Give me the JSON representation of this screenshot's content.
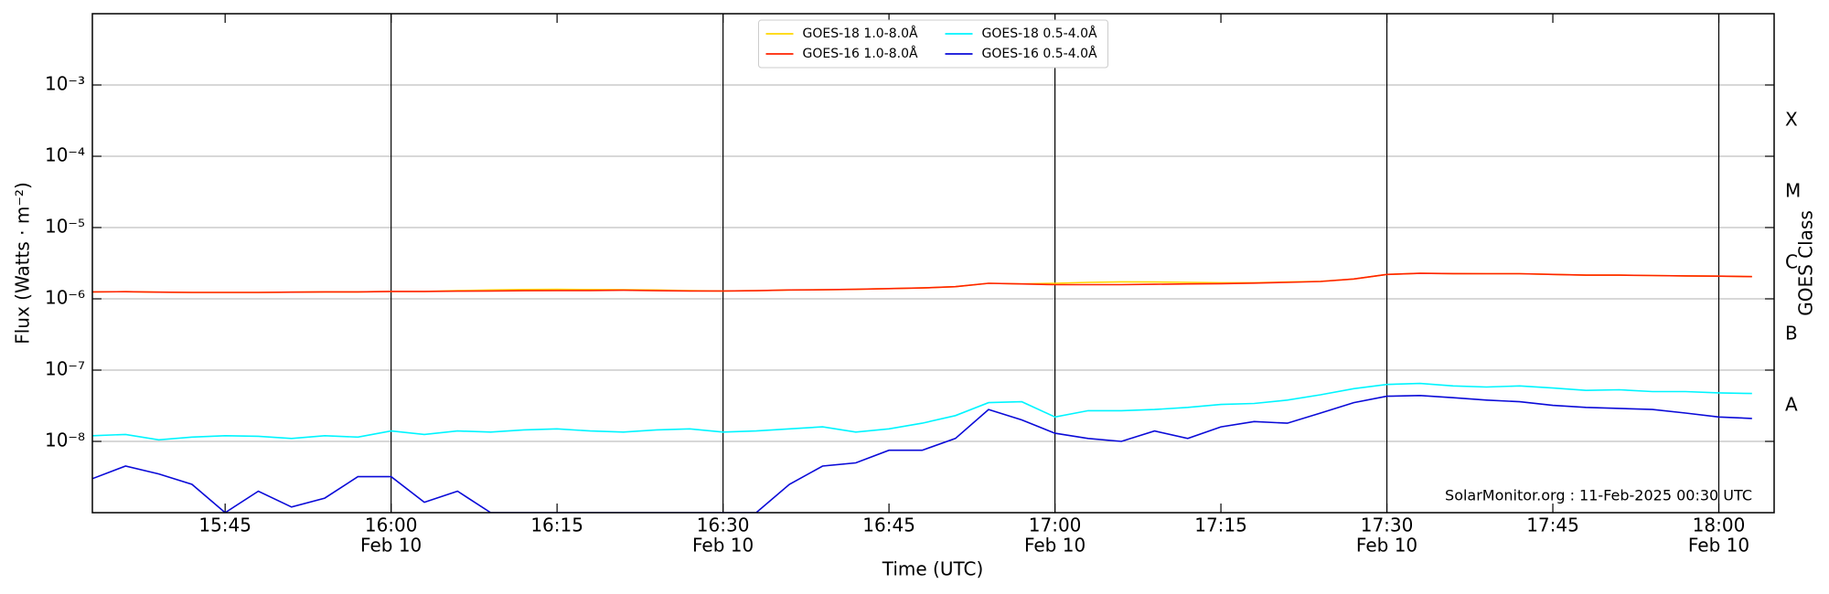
{
  "chart_data": {
    "type": "line",
    "xlabel": "Time (UTC)",
    "ylabel": "Flux (Watts · m⁻²)",
    "y2label": "GOES Class",
    "annotation": "SolarMonitor.org : 11-Feb-2025 00:30 UTC",
    "log_scale": true,
    "grid": true,
    "legend": "upper center",
    "x": [
      "15:33",
      "15:36",
      "15:39",
      "15:42",
      "15:45",
      "15:48",
      "15:51",
      "15:54",
      "15:57",
      "16:00",
      "16:03",
      "16:06",
      "16:09",
      "16:12",
      "16:15",
      "16:18",
      "16:21",
      "16:24",
      "16:27",
      "16:30",
      "16:33",
      "16:36",
      "16:39",
      "16:42",
      "16:45",
      "16:48",
      "16:51",
      "16:54",
      "16:57",
      "17:00",
      "17:03",
      "17:06",
      "17:09",
      "17:12",
      "17:15",
      "17:18",
      "17:21",
      "17:24",
      "17:27",
      "17:30",
      "17:33",
      "17:36",
      "17:39",
      "17:42",
      "17:45",
      "17:48",
      "17:51",
      "17:54",
      "17:57",
      "18:00",
      "18:03"
    ],
    "xlim": [
      "15:33",
      "18:05"
    ],
    "xticks": [
      "15:45",
      {
        "value": "16:00",
        "label": "16:00",
        "date": "Feb 10"
      },
      "16:15",
      {
        "value": "16:30",
        "label": "16:30",
        "date": "Feb 10"
      },
      "16:45",
      {
        "value": "17:00",
        "label": "17:00",
        "date": "Feb 10"
      },
      "17:15",
      {
        "value": "17:30",
        "label": "17:30",
        "date": "Feb 10"
      },
      "17:45",
      {
        "value": "18:00",
        "label": "18:00",
        "date": "Feb 10"
      }
    ],
    "ylim": [
      1e-09,
      0.01
    ],
    "yticks": [
      {
        "value": 1e-08,
        "label": "10⁻⁸"
      },
      {
        "value": 1e-07,
        "label": "10⁻⁷"
      },
      {
        "value": 1e-06,
        "label": "10⁻⁶"
      },
      {
        "value": 1e-05,
        "label": "10⁻⁵"
      },
      {
        "value": 0.0001,
        "label": "10⁻⁴"
      },
      {
        "value": 0.001,
        "label": "10⁻³"
      }
    ],
    "y2lim": [
      1e-09,
      0.01
    ],
    "y2ticks": [
      {
        "value": 3.16e-08,
        "label": "A"
      },
      {
        "value": 3.16e-07,
        "label": "B"
      },
      {
        "value": 3.16e-06,
        "label": "C"
      },
      {
        "value": 3.16e-05,
        "label": "M"
      },
      {
        "value": 0.000316,
        "label": "X"
      }
    ],
    "series": [
      {
        "name": "GOES-18 1.0-8.0Å",
        "color": "#ffd700",
        "values": [
          1.25e-06,
          1.26e-06,
          1.24e-06,
          1.23e-06,
          1.23e-06,
          1.23e-06,
          1.24e-06,
          1.25e-06,
          1.25e-06,
          1.27e-06,
          1.27e-06,
          1.3e-06,
          1.33e-06,
          1.35e-06,
          1.36e-06,
          1.35e-06,
          1.34e-06,
          1.33e-06,
          1.3e-06,
          1.29e-06,
          1.3e-06,
          1.33e-06,
          1.34e-06,
          1.36e-06,
          1.39e-06,
          1.42e-06,
          1.48e-06,
          1.65e-06,
          1.62e-06,
          1.65e-06,
          1.7e-06,
          1.73e-06,
          1.72e-06,
          1.7e-06,
          1.68e-06,
          1.68e-06,
          1.72e-06,
          1.76e-06,
          1.9e-06,
          2.2e-06,
          2.28e-06,
          2.26e-06,
          2.25e-06,
          2.25e-06,
          2.2e-06,
          2.15e-06,
          2.15e-06,
          2.12e-06,
          2.1e-06,
          2.08e-06,
          2.05e-06
        ]
      },
      {
        "name": "GOES-16 1.0-8.0Å",
        "color": "#ff2200",
        "values": [
          1.25e-06,
          1.26e-06,
          1.24e-06,
          1.23e-06,
          1.23e-06,
          1.23e-06,
          1.24e-06,
          1.25e-06,
          1.25e-06,
          1.27e-06,
          1.27e-06,
          1.28e-06,
          1.29e-06,
          1.3e-06,
          1.31e-06,
          1.31e-06,
          1.32e-06,
          1.3e-06,
          1.29e-06,
          1.29e-06,
          1.3e-06,
          1.33e-06,
          1.34e-06,
          1.36e-06,
          1.39e-06,
          1.42e-06,
          1.48e-06,
          1.65e-06,
          1.62e-06,
          1.58e-06,
          1.58e-06,
          1.58e-06,
          1.6e-06,
          1.62e-06,
          1.63e-06,
          1.66e-06,
          1.7e-06,
          1.75e-06,
          1.9e-06,
          2.2e-06,
          2.28e-06,
          2.26e-06,
          2.25e-06,
          2.25e-06,
          2.2e-06,
          2.15e-06,
          2.15e-06,
          2.12e-06,
          2.1e-06,
          2.08e-06,
          2.05e-06
        ]
      },
      {
        "name": "GOES-18 0.5-4.0Å",
        "color": "#00f5ff",
        "values": [
          1.2e-08,
          1.25e-08,
          1.05e-08,
          1.15e-08,
          1.2e-08,
          1.18e-08,
          1.1e-08,
          1.2e-08,
          1.15e-08,
          1.4e-08,
          1.25e-08,
          1.4e-08,
          1.35e-08,
          1.45e-08,
          1.5e-08,
          1.4e-08,
          1.35e-08,
          1.45e-08,
          1.5e-08,
          1.35e-08,
          1.4e-08,
          1.5e-08,
          1.6e-08,
          1.35e-08,
          1.5e-08,
          1.8e-08,
          2.3e-08,
          3.5e-08,
          3.6e-08,
          2.2e-08,
          2.7e-08,
          2.7e-08,
          2.8e-08,
          3e-08,
          3.3e-08,
          3.4e-08,
          3.8e-08,
          4.5e-08,
          5.5e-08,
          6.3e-08,
          6.5e-08,
          6e-08,
          5.8e-08,
          6e-08,
          5.6e-08,
          5.2e-08,
          5.3e-08,
          5e-08,
          5e-08,
          4.8e-08,
          4.7e-08
        ]
      },
      {
        "name": "GOES-16 0.5-4.0Å",
        "color": "#0a0ad8",
        "values": [
          3e-09,
          4.5e-09,
          3.5e-09,
          2.5e-09,
          1e-09,
          2e-09,
          1.2e-09,
          1.6e-09,
          3.2e-09,
          3.2e-09,
          1.4e-09,
          2e-09,
          1e-09,
          1e-09,
          1e-09,
          1e-09,
          1e-09,
          1e-09,
          1e-09,
          1e-09,
          1e-09,
          2.5e-09,
          4.5e-09,
          5e-09,
          7.5e-09,
          7.5e-09,
          1.1e-08,
          2.8e-08,
          2e-08,
          1.3e-08,
          1.1e-08,
          1e-08,
          1.4e-08,
          1.1e-08,
          1.6e-08,
          1.9e-08,
          1.8e-08,
          2.5e-08,
          3.5e-08,
          4.3e-08,
          4.4e-08,
          4.1e-08,
          3.8e-08,
          3.6e-08,
          3.2e-08,
          3e-08,
          2.9e-08,
          2.8e-08,
          2.5e-08,
          2.2e-08,
          2.1e-08
        ]
      }
    ]
  }
}
